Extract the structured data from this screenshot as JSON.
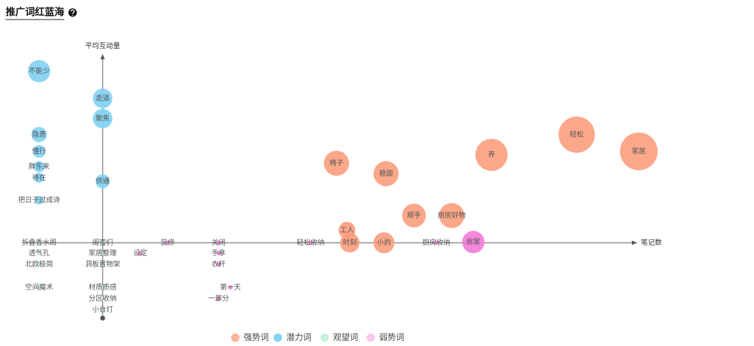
{
  "chart_data": {
    "type": "bubble",
    "title": "推广词红蓝海",
    "ylabel": "平均互动量",
    "xlabel": "笔记数",
    "xlim": [
      -11.2,
      76.5
    ],
    "ylim": [
      -10.8,
      27
    ],
    "series": [
      {
        "name": "强势词",
        "color": "#fb9d7c",
        "labels": [
          "轻松",
          "家居",
          "养",
          "椅子",
          "稳固",
          "顺手",
          "厨房好物",
          "工人",
          "时刻",
          "小的"
        ],
        "x": [
          67.9,
          76.8,
          55.7,
          33.5,
          40.6,
          44.6,
          50,
          35,
          35.4,
          40.3
        ],
        "y": [
          15.5,
          13.1,
          12.6,
          11.4,
          9.9,
          3.9,
          3.9,
          1.8,
          0,
          0
        ],
        "sizes": [
          26,
          27,
          23,
          18,
          18,
          17,
          18,
          12,
          14,
          15
        ]
      },
      {
        "name": "潜力词",
        "color": "#7fd2f3",
        "labels": [
          "不能少",
          "走道",
          "聚焦",
          "隐患",
          "懂行",
          "胖东来",
          "待在",
          "供通",
          "把日子过成诗"
        ],
        "x": [
          -9.1,
          0,
          0,
          -9.1,
          -9.1,
          -9.1,
          -9.1,
          0,
          -9.1
        ],
        "y": [
          24.6,
          20.7,
          17.8,
          15.5,
          13.1,
          10.9,
          9.3,
          8.8,
          6.1
        ],
        "sizes": [
          16,
          14,
          14,
          11,
          9,
          8,
          7,
          10,
          6
        ]
      },
      {
        "name": "观望词",
        "color": "#b6efd2",
        "labels": [
          "折叠香水阁",
          "透气孔",
          "北欧极简",
          "空间魔术",
          "闺蜜们",
          "家居整理",
          "洞板置物架",
          "材质质感",
          "分区收纳",
          "小台灯"
        ],
        "x": [
          -9.1,
          -9.1,
          -9.1,
          -9.1,
          0,
          0,
          0,
          0,
          0,
          0
        ],
        "y": [
          0,
          -1.5,
          -3.1,
          -6.4,
          0,
          -1.5,
          -3.1,
          -6.4,
          -8,
          -9.6
        ],
        "sizes": [
          3,
          3,
          3,
          3,
          3,
          3,
          3,
          3,
          3,
          3
        ]
      },
      {
        "name": "弱势词",
        "color": "#f27bd6",
        "labels": [
          "房家",
          "设定",
          "装修",
          "关闭",
          "手拿",
          "衣杆",
          "第一天",
          "一部分",
          "轻松收纳",
          "厨房收纳"
        ],
        "x": [
          53.1,
          5.4,
          9.3,
          16.6,
          16.6,
          16.6,
          18.3,
          16.6,
          29.8,
          47.8
        ],
        "y": [
          0.1,
          -1.5,
          0,
          0,
          -1.5,
          -3.1,
          -6.4,
          -8,
          0,
          0
        ],
        "sizes": [
          16,
          3,
          3,
          3,
          3,
          3,
          3,
          3,
          3,
          3
        ]
      }
    ],
    "legend_colors": [
      "#fbb59c",
      "#85d4f3",
      "#c4f2dc",
      "#f9c8ee"
    ]
  }
}
